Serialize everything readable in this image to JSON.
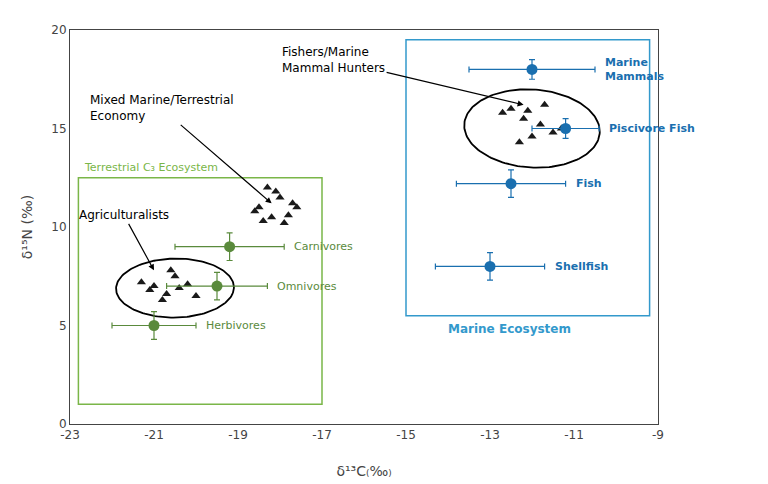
{
  "chart_data": {
    "type": "scatter",
    "xlabel": "δ¹³C₍‰₎",
    "ylabel": "δ¹⁵N (‰)",
    "xlim": [
      -23,
      -9
    ],
    "ylim": [
      0,
      20
    ],
    "xticks": [
      -23,
      -21,
      -19,
      -17,
      -15,
      -13,
      -11,
      -9
    ],
    "yticks": [
      0,
      5,
      10,
      15,
      20
    ],
    "grid": false,
    "boxes": [
      {
        "label": "Terrestrial C₃ Ecosystem",
        "color": "#7ab648",
        "x0": -22.8,
        "y0": 1.0,
        "x1": -17.0,
        "y1": 12.5
      },
      {
        "label": "Marine Ecosystem",
        "color": "#3399cc",
        "x0": -15.0,
        "y0": 5.5,
        "x1": -9.2,
        "y1": 19.5
      }
    ],
    "ellipses": [
      {
        "color": "#000000",
        "cx": -20.5,
        "cy": 6.9,
        "rx": 1.4,
        "ry": 1.5,
        "angle": -10
      },
      {
        "color": "#000000",
        "cx": -12.0,
        "cy": 15.0,
        "rx": 1.6,
        "ry": 2.0,
        "angle": 10
      }
    ],
    "series": [
      {
        "marker": "triangle",
        "color": "#1a1a1a",
        "x": [
          -21.3,
          -21.0,
          -20.7,
          -20.5,
          -20.2,
          -20.0,
          -20.8,
          -21.1,
          -20.4,
          -20.6
        ],
        "y": [
          7.2,
          7.0,
          6.6,
          7.5,
          7.1,
          6.5,
          6.3,
          6.8,
          6.9,
          7.8
        ]
      },
      {
        "marker": "triangle",
        "color": "#1a1a1a",
        "x": [
          -18.5,
          -18.2,
          -17.9,
          -18.6,
          -18.0,
          -17.7,
          -18.3,
          -17.8,
          -18.1,
          -17.6,
          -18.4
        ],
        "y": [
          11.0,
          10.5,
          10.2,
          10.8,
          11.5,
          11.2,
          12.0,
          10.6,
          11.8,
          11.0,
          10.3
        ]
      },
      {
        "marker": "triangle",
        "color": "#1a1a1a",
        "x": [
          -12.5,
          -12.2,
          -11.8,
          -12.0,
          -11.5,
          -12.3,
          -11.7,
          -12.7,
          -11.3,
          -12.1
        ],
        "y": [
          16.0,
          15.5,
          15.2,
          14.6,
          14.8,
          14.3,
          16.2,
          15.8,
          15.0,
          15.9
        ]
      }
    ],
    "point_groups": [
      {
        "marker": "circle",
        "color": "#5a8a3c",
        "points": [
          {
            "x": -21.0,
            "y": 5.0,
            "xerr": 1.0,
            "yerr": 0.7,
            "label": "Herbivores"
          },
          {
            "x": -19.5,
            "y": 7.0,
            "xerr": 1.2,
            "yerr": 0.7,
            "label": "Omnivores"
          },
          {
            "x": -19.2,
            "y": 9.0,
            "xerr": 1.3,
            "yerr": 0.7,
            "label": "Carnivores"
          }
        ]
      },
      {
        "marker": "circle",
        "color": "#1a6faf",
        "points": [
          {
            "x": -12.0,
            "y": 18.0,
            "xerr": 1.5,
            "yerr": 0.5,
            "label": "Marine\nMammals"
          },
          {
            "x": -11.2,
            "y": 15.0,
            "xerr": 0.8,
            "yerr": 0.5,
            "label": "Piscivore Fish"
          },
          {
            "x": -12.5,
            "y": 12.2,
            "xerr": 1.3,
            "yerr": 0.7,
            "label": "Fish"
          },
          {
            "x": -13.0,
            "y": 8.0,
            "xerr": 1.3,
            "yerr": 0.7,
            "label": "Shellfish"
          }
        ]
      }
    ],
    "annotations": [
      {
        "text": "Agriculturalists",
        "x": -21.0,
        "y": 7.8
      },
      {
        "text": "Mixed Marine/Terrestrial\nEconomy",
        "x": -18.2,
        "y": 11.2
      },
      {
        "text": "Fishers/Marine\nMammal Hunters",
        "x": -12.2,
        "y": 16.2
      }
    ]
  }
}
